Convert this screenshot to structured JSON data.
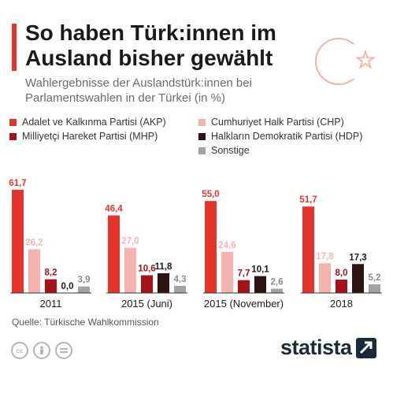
{
  "header": {
    "title": "So haben Türk:innen im Ausland bisher gewählt",
    "subtitle": "Wahlergebnisse der Auslandstürk:innen bei Parlamentswahlen in der Türkei (in %)"
  },
  "footer": {
    "source": "Quelle: Türkische Wahlkommission",
    "brand": "statista"
  },
  "icons": {
    "flag": "crescent-star-icon",
    "license": [
      "cc-icon",
      "attribution-icon",
      "noderivs-icon"
    ],
    "brand_mark": "statista-arrow-icon"
  },
  "colors": {
    "accent": "#e5342b",
    "AKP": "#e5342b",
    "CHP": "#f4b3ae",
    "MHP": "#a6121b",
    "HDP": "#2c1410",
    "Sonstige": "#a3a3a3"
  },
  "chart_data": {
    "type": "bar",
    "categories": [
      "2011",
      "2015 (Juni)",
      "2015 (November)",
      "2018"
    ],
    "series": [
      {
        "name": "Adalet ve Kalkınma Partisi (AKP)",
        "key": "AKP",
        "values": [
          61.7,
          46.4,
          55.0,
          51.7
        ],
        "labels": [
          "61,7",
          "46,4",
          "55,0",
          "51,7"
        ]
      },
      {
        "name": "Cumhuriyet Halk Partisi (CHP)",
        "key": "CHP",
        "values": [
          26.2,
          27.0,
          24.6,
          17.8
        ],
        "labels": [
          "26,2",
          "27,0",
          "24,6",
          "17,8"
        ]
      },
      {
        "name": "Milliyetçi Hareket Partisi (MHP)",
        "key": "MHP",
        "values": [
          8.2,
          10.6,
          7.7,
          8.0
        ],
        "labels": [
          "8,2",
          "10,6",
          "7,7",
          "8,0"
        ]
      },
      {
        "name": "Halkların Demokratik Partisi (HDP)",
        "key": "HDP",
        "values": [
          0.0,
          11.8,
          10.1,
          17.3
        ],
        "labels": [
          "0,0",
          "11,8",
          "10,1",
          "17,3"
        ]
      },
      {
        "name": "Sonstige",
        "key": "Sonstige",
        "values": [
          3.9,
          4.3,
          2.6,
          5.2
        ],
        "labels": [
          "3,9",
          "4,3",
          "2,6",
          "5,2"
        ]
      }
    ],
    "ylim": [
      0,
      65
    ],
    "grid": false,
    "legend_placement": "top"
  }
}
